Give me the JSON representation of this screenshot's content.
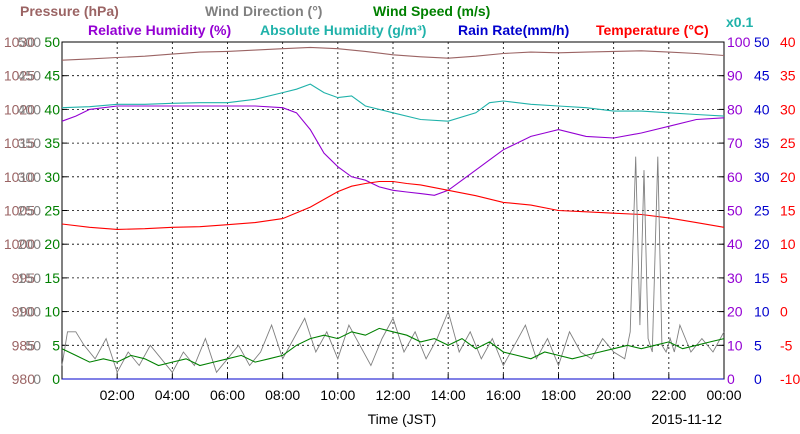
{
  "chart_data": {
    "type": "line",
    "date": "2015-11-12",
    "xlabel": "Time (JST)",
    "x_ticks": [
      "02:00",
      "04:00",
      "06:00",
      "08:00",
      "10:00",
      "12:00",
      "14:00",
      "16:00",
      "18:00",
      "20:00",
      "22:00",
      "00:00"
    ],
    "x_range_hours": [
      0,
      24
    ],
    "grid": true,
    "legend_row1": [
      {
        "label": "Pressure (hPa)",
        "color": "#9b6464"
      },
      {
        "label": "Wind Direction (°)",
        "color": "#808080"
      },
      {
        "label": "Wind Speed (m/s)",
        "color": "#008000"
      }
    ],
    "legend_row2": [
      {
        "label": "Relative Humidity (%)",
        "color": "#9400d3"
      },
      {
        "label": "Absolute Humidity (g/m³)",
        "color": "#20b2aa"
      },
      {
        "label": "Rain Rate(mm/h)",
        "color": "#0000cd"
      },
      {
        "label": "Temperature (°C)",
        "color": "#ff0000"
      }
    ],
    "abs_humidity_scale": "x0.1",
    "axes": {
      "pressure": {
        "color": "#9b6464",
        "range": [
          980,
          1030
        ],
        "ticks": [
          "1030",
          "1025",
          "1020",
          "1015",
          "1010",
          "1005",
          "1000",
          "995",
          "990",
          "985",
          "980"
        ]
      },
      "wind_direction": {
        "color": "#808080",
        "range": [
          0,
          500
        ],
        "ticks": [
          "500",
          "450",
          "400",
          "350",
          "300",
          "250",
          "200",
          "150",
          "100",
          "50",
          "0"
        ]
      },
      "wind_speed": {
        "color": "#008000",
        "range": [
          0,
          50
        ],
        "ticks": [
          "50",
          "45",
          "40",
          "35",
          "30",
          "25",
          "20",
          "15",
          "10",
          "5",
          "0"
        ]
      },
      "humidity": {
        "color": "#9400d3",
        "range": [
          0,
          100
        ],
        "ticks": [
          "100",
          "90",
          "80",
          "70",
          "60",
          "50",
          "40",
          "30",
          "20",
          "10",
          "0"
        ]
      },
      "rain_rate": {
        "color": "#0000cd",
        "range": [
          0,
          50
        ],
        "ticks": [
          "50",
          "45",
          "40",
          "35",
          "30",
          "25",
          "20",
          "15",
          "10",
          "5",
          "0"
        ]
      },
      "temperature": {
        "color": "#ff0000",
        "range": [
          -10,
          40
        ],
        "ticks": [
          "40",
          "35",
          "30",
          "25",
          "20",
          "15",
          "10",
          "5",
          "0",
          "-5",
          "-10"
        ]
      }
    },
    "series": [
      {
        "name": "Pressure (hPa)",
        "axis": "pressure",
        "color": "#9b6464",
        "x": [
          0,
          1,
          2,
          3,
          4,
          5,
          6,
          7,
          8,
          9,
          10,
          11,
          12,
          13,
          14,
          15,
          16,
          17,
          18,
          19,
          20,
          21,
          22,
          23,
          24
        ],
        "y": [
          1027.3,
          1027.5,
          1027.7,
          1027.9,
          1028.2,
          1028.5,
          1028.6,
          1028.8,
          1029.0,
          1029.2,
          1029.0,
          1028.6,
          1028.1,
          1027.8,
          1027.6,
          1027.9,
          1028.3,
          1028.5,
          1028.4,
          1028.5,
          1028.6,
          1028.7,
          1028.5,
          1028.3,
          1028.0
        ]
      },
      {
        "name": "Absolute Humidity (g/m³)",
        "axis": "humidity",
        "color": "#20b2aa",
        "x": [
          0,
          1,
          2,
          3,
          4,
          5,
          6,
          7,
          8,
          8.5,
          9,
          9.5,
          10,
          10.5,
          11,
          12,
          13,
          14,
          15,
          15.5,
          16,
          17,
          18,
          19,
          20,
          21,
          22,
          23,
          24
        ],
        "y": [
          80.5,
          80.8,
          81.5,
          81.5,
          81.8,
          82.0,
          82.0,
          83.0,
          85.0,
          86.0,
          87.5,
          85.0,
          83.5,
          84.0,
          81.0,
          79.0,
          77.0,
          76.5,
          79.0,
          82.0,
          82.5,
          81.5,
          81.0,
          80.5,
          79.5,
          79.5,
          79.0,
          78.5,
          78.0
        ]
      },
      {
        "name": "Relative Humidity (%)",
        "axis": "humidity",
        "color": "#9400d3",
        "x": [
          0,
          0.5,
          1,
          2,
          3,
          4,
          5,
          6,
          7,
          8,
          8.5,
          9,
          9.5,
          10,
          10.5,
          11,
          11.5,
          12,
          12.5,
          13,
          13.5,
          14,
          14.5,
          15,
          15.5,
          16,
          16.5,
          17,
          17.5,
          18,
          19,
          20,
          21,
          22,
          23,
          24
        ],
        "y": [
          76.5,
          78,
          80,
          81,
          81,
          81,
          81,
          81,
          81,
          80.5,
          79,
          74,
          67,
          63,
          60,
          59,
          57,
          56,
          55.5,
          55,
          54.5,
          56,
          59,
          62,
          65,
          68,
          70,
          72,
          73,
          74,
          72,
          71.5,
          73,
          75,
          77,
          77.5
        ]
      },
      {
        "name": "Temperature (°C)",
        "axis": "temperature",
        "color": "#ff0000",
        "x": [
          0,
          1,
          2,
          3,
          4,
          5,
          6,
          7,
          8,
          9,
          10,
          10.5,
          11,
          11.5,
          12,
          12.5,
          13,
          14,
          15,
          16,
          17,
          18,
          19,
          20,
          21,
          22,
          23,
          24
        ],
        "y": [
          13.0,
          12.5,
          12.2,
          12.3,
          12.5,
          12.6,
          12.9,
          13.2,
          13.8,
          15.5,
          17.8,
          18.6,
          19.0,
          19.3,
          19.3,
          19.0,
          18.8,
          18.0,
          17.2,
          16.2,
          15.8,
          15.0,
          14.8,
          14.6,
          14.4,
          13.9,
          13.2,
          12.5
        ]
      },
      {
        "name": "Wind Direction (°)",
        "axis": "wind_direction",
        "color": "#808080",
        "x": [
          0,
          0.2,
          0.5,
          0.8,
          1.2,
          1.6,
          2.0,
          2.4,
          2.8,
          3.2,
          3.6,
          4.0,
          4.4,
          4.8,
          5.2,
          5.6,
          6.0,
          6.4,
          6.8,
          7.2,
          7.6,
          8.0,
          8.4,
          8.8,
          9.2,
          9.6,
          10.0,
          10.4,
          10.8,
          11.2,
          11.6,
          12.0,
          12.4,
          12.8,
          13.2,
          13.6,
          14.0,
          14.4,
          14.8,
          15.2,
          15.6,
          16.0,
          16.4,
          16.8,
          17.2,
          17.6,
          18.0,
          18.4,
          18.8,
          19.2,
          19.6,
          20.0,
          20.4,
          20.6,
          20.8,
          20.95,
          21.1,
          21.25,
          21.4,
          21.6,
          21.75,
          21.9,
          22.05,
          22.2,
          22.4,
          22.8,
          23.2,
          23.6,
          24.0
        ],
        "y": [
          20,
          70,
          70,
          50,
          30,
          60,
          10,
          40,
          20,
          50,
          30,
          10,
          40,
          20,
          60,
          10,
          30,
          50,
          20,
          40,
          80,
          30,
          60,
          90,
          40,
          70,
          30,
          80,
          50,
          20,
          60,
          90,
          40,
          70,
          30,
          60,
          100,
          40,
          70,
          30,
          60,
          20,
          50,
          80,
          30,
          60,
          20,
          70,
          40,
          30,
          60,
          40,
          30,
          70,
          330,
          80,
          310,
          60,
          40,
          330,
          50,
          40,
          60,
          40,
          80,
          40,
          60,
          40,
          70
        ]
      },
      {
        "name": "Wind Speed (m/s)",
        "axis": "wind_speed",
        "color": "#008000",
        "x": [
          0,
          0.5,
          1,
          1.5,
          2,
          2.5,
          3,
          3.5,
          4,
          4.5,
          5,
          5.5,
          6,
          6.5,
          7,
          7.5,
          8,
          8.5,
          9,
          9.5,
          10,
          10.5,
          11,
          11.5,
          12,
          12.5,
          13,
          13.5,
          14,
          14.5,
          15,
          15.5,
          16,
          16.5,
          17,
          17.5,
          18,
          18.5,
          19,
          19.5,
          20,
          20.5,
          21,
          21.5,
          22,
          22.5,
          23,
          23.5,
          24
        ],
        "y": [
          4.5,
          3.5,
          2.5,
          3.0,
          2.5,
          3.5,
          3.0,
          2.0,
          2.5,
          3.0,
          2.0,
          2.5,
          3.0,
          3.5,
          2.5,
          3.0,
          3.5,
          5.0,
          6.0,
          6.5,
          6.0,
          7.0,
          6.5,
          7.5,
          7.0,
          6.5,
          5.5,
          6.0,
          5.0,
          6.0,
          4.5,
          5.5,
          4.0,
          3.5,
          3.0,
          4.0,
          3.5,
          3.0,
          3.5,
          4.0,
          4.5,
          5.0,
          4.5,
          5.0,
          5.5,
          4.5,
          5.0,
          5.5,
          6.0
        ]
      },
      {
        "name": "Rain Rate(mm/h)",
        "axis": "rain_rate",
        "color": "#0000cd",
        "x": [
          0,
          24
        ],
        "y": [
          0,
          0
        ]
      }
    ]
  }
}
